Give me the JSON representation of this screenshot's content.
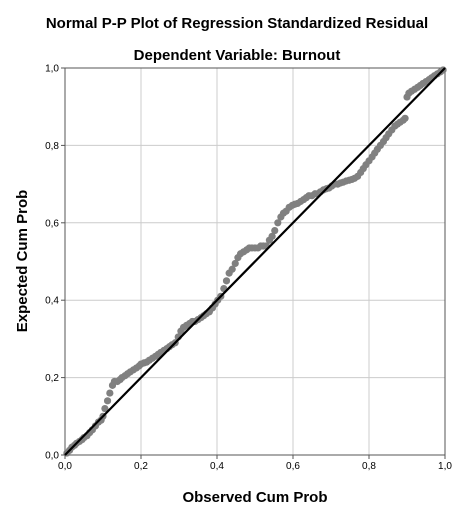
{
  "chart_data": {
    "type": "scatter",
    "title": "Normal P-P Plot of Regression Standardized Residual",
    "subtitle": "Dependent Variable: Burnout",
    "xlabel": "Observed Cum Prob",
    "ylabel": "Expected Cum Prob",
    "xlim": [
      0,
      1
    ],
    "ylim": [
      0,
      1
    ],
    "x_ticks": [
      "0,0",
      "0,2",
      "0,4",
      "0,6",
      "0,8",
      "1,0"
    ],
    "y_ticks": [
      "0,0",
      "0,2",
      "0,4",
      "0,6",
      "0,8",
      "1,0"
    ],
    "grid": true,
    "reference_line": {
      "x": [
        0,
        1
      ],
      "y": [
        0,
        1
      ]
    },
    "series": [
      {
        "x": [
          0.005,
          0.012,
          0.018,
          0.025,
          0.03,
          0.038,
          0.045,
          0.05,
          0.058,
          0.065,
          0.072,
          0.08,
          0.088,
          0.095,
          0.1,
          0.105,
          0.112,
          0.118,
          0.125,
          0.13,
          0.138,
          0.145,
          0.15,
          0.158,
          0.165,
          0.172,
          0.18,
          0.188,
          0.195,
          0.2,
          0.208,
          0.215,
          0.222,
          0.23,
          0.238,
          0.245,
          0.252,
          0.26,
          0.268,
          0.275,
          0.282,
          0.29,
          0.298,
          0.305,
          0.312,
          0.32,
          0.328,
          0.335,
          0.342,
          0.35,
          0.358,
          0.365,
          0.372,
          0.38,
          0.388,
          0.395,
          0.402,
          0.41,
          0.418,
          0.425,
          0.432,
          0.44,
          0.448,
          0.455,
          0.462,
          0.47,
          0.478,
          0.485,
          0.492,
          0.5,
          0.508,
          0.515,
          0.522,
          0.53,
          0.538,
          0.545,
          0.552,
          0.56,
          0.568,
          0.575,
          0.582,
          0.59,
          0.598,
          0.605,
          0.612,
          0.62,
          0.628,
          0.635,
          0.642,
          0.65,
          0.658,
          0.665,
          0.672,
          0.68,
          0.688,
          0.695,
          0.702,
          0.71,
          0.718,
          0.725,
          0.732,
          0.74,
          0.748,
          0.755,
          0.762,
          0.77,
          0.778,
          0.785,
          0.792,
          0.8,
          0.808,
          0.815,
          0.822,
          0.83,
          0.838,
          0.845,
          0.852,
          0.86,
          0.868,
          0.875,
          0.882,
          0.89,
          0.895,
          0.9,
          0.905,
          0.912,
          0.92,
          0.928,
          0.935,
          0.942,
          0.95,
          0.958,
          0.965,
          0.972,
          0.98,
          0.988,
          0.995
        ],
        "y": [
          0.005,
          0.012,
          0.02,
          0.025,
          0.03,
          0.035,
          0.04,
          0.045,
          0.05,
          0.058,
          0.065,
          0.075,
          0.085,
          0.09,
          0.1,
          0.12,
          0.14,
          0.16,
          0.18,
          0.19,
          0.19,
          0.195,
          0.2,
          0.205,
          0.21,
          0.215,
          0.22,
          0.225,
          0.23,
          0.235,
          0.238,
          0.24,
          0.245,
          0.25,
          0.255,
          0.26,
          0.265,
          0.27,
          0.275,
          0.28,
          0.285,
          0.29,
          0.305,
          0.32,
          0.33,
          0.335,
          0.34,
          0.345,
          0.345,
          0.35,
          0.355,
          0.36,
          0.365,
          0.37,
          0.38,
          0.39,
          0.4,
          0.41,
          0.43,
          0.45,
          0.47,
          0.48,
          0.495,
          0.51,
          0.52,
          0.525,
          0.53,
          0.535,
          0.535,
          0.535,
          0.535,
          0.54,
          0.54,
          0.54,
          0.555,
          0.565,
          0.58,
          0.6,
          0.615,
          0.625,
          0.63,
          0.64,
          0.645,
          0.648,
          0.65,
          0.655,
          0.66,
          0.665,
          0.67,
          0.67,
          0.675,
          0.675,
          0.68,
          0.685,
          0.688,
          0.69,
          0.695,
          0.7,
          0.7,
          0.703,
          0.705,
          0.708,
          0.71,
          0.712,
          0.715,
          0.72,
          0.73,
          0.74,
          0.75,
          0.76,
          0.77,
          0.78,
          0.79,
          0.8,
          0.81,
          0.82,
          0.83,
          0.84,
          0.85,
          0.855,
          0.86,
          0.865,
          0.87,
          0.925,
          0.935,
          0.94,
          0.945,
          0.95,
          0.955,
          0.96,
          0.965,
          0.97,
          0.975,
          0.98,
          0.985,
          0.99,
          0.995
        ]
      }
    ]
  },
  "colors": {
    "points": "#808080",
    "reference_line": "#000000",
    "grid": "#cccccc",
    "axes": "#555555"
  }
}
